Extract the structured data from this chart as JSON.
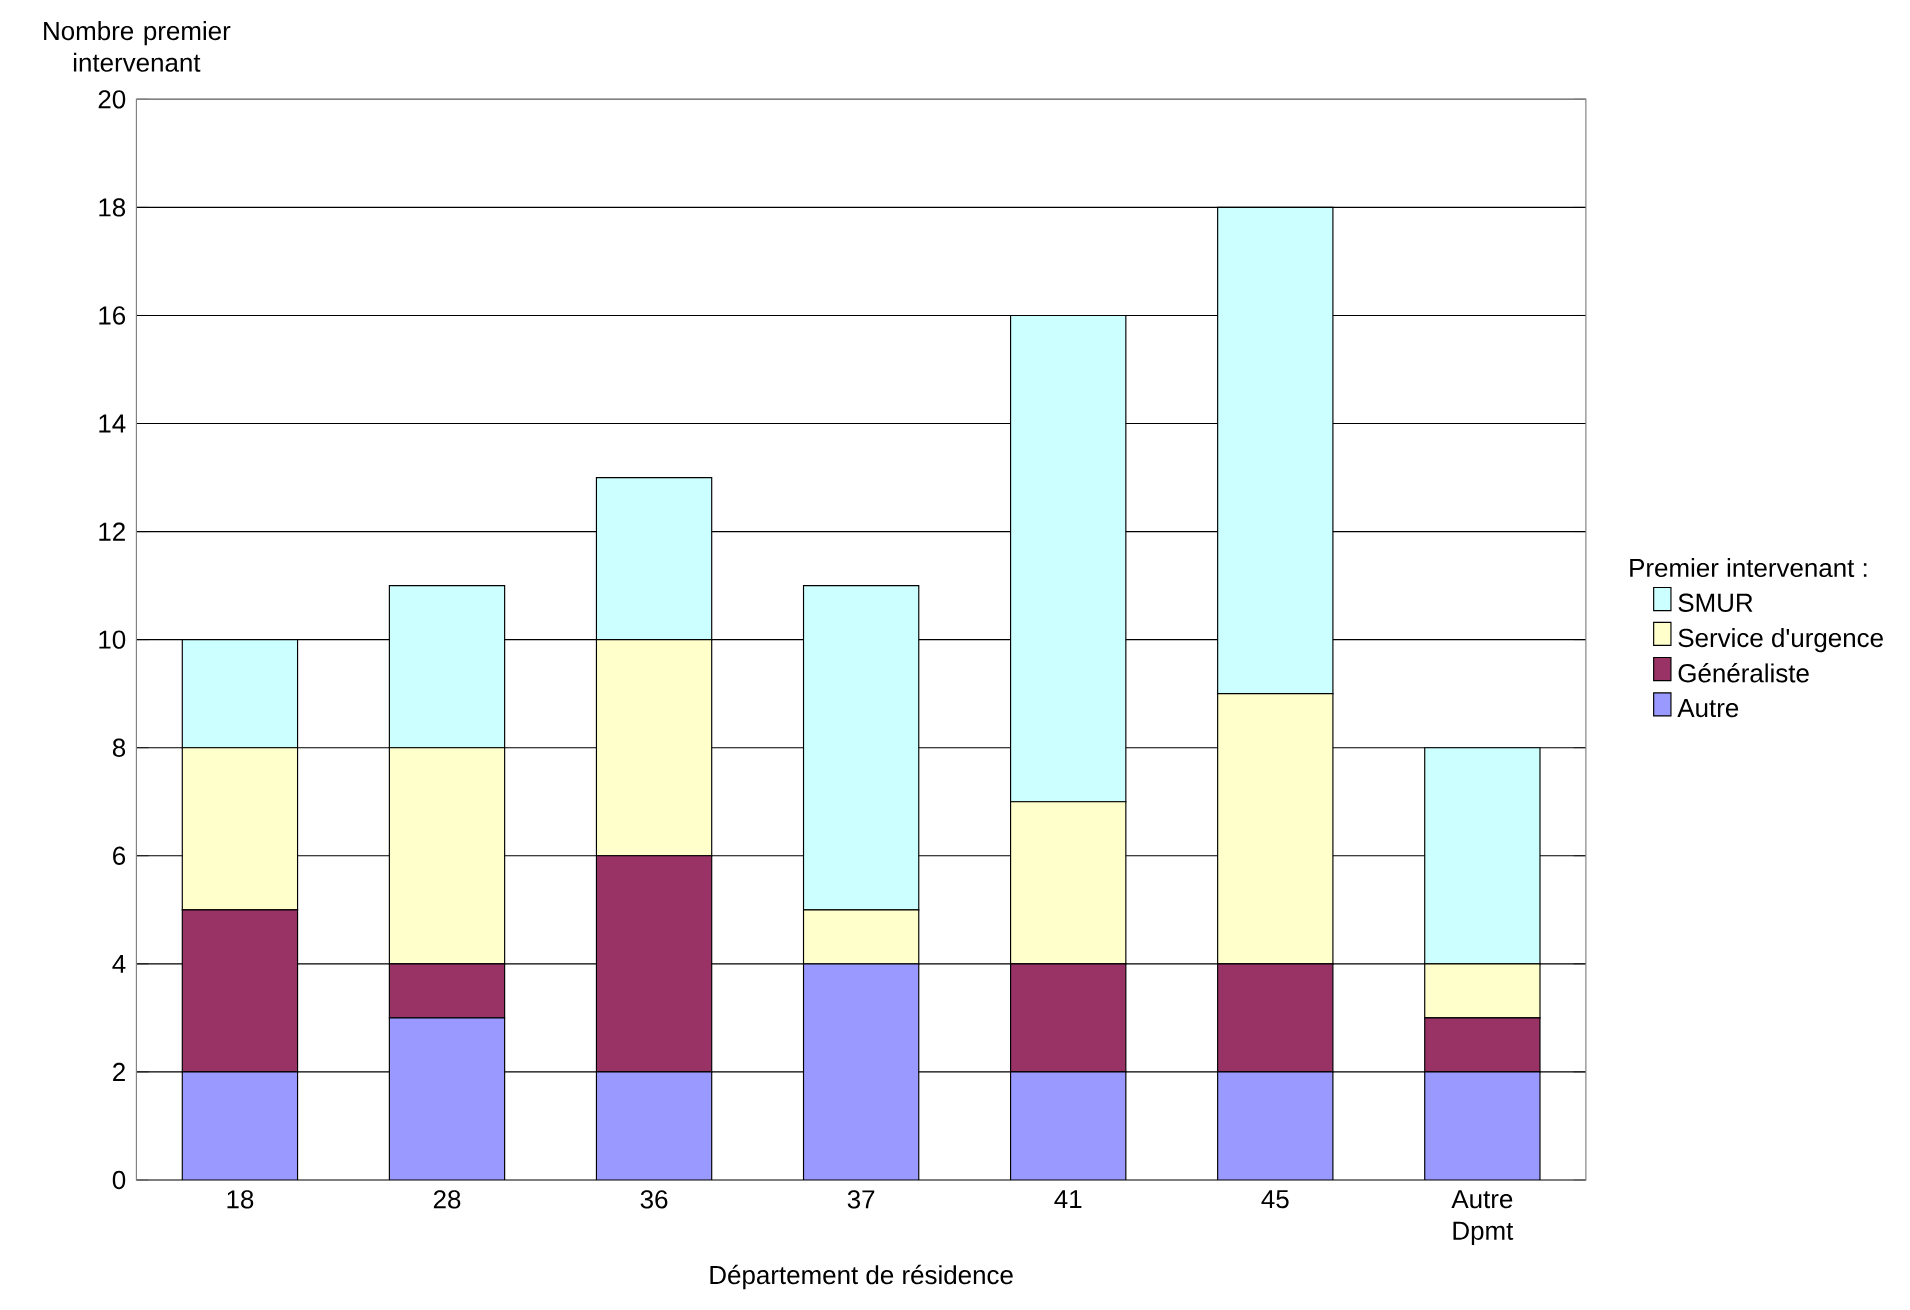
{
  "chart_data": {
    "type": "bar",
    "stacked": true,
    "xlabel": "Département de résidence",
    "ylabel": "Nombre premier intervenant",
    "legend_title": "Premier intervenant :",
    "categories": [
      "18",
      "28",
      "36",
      "37",
      "41",
      "45",
      "Autre Dpmt"
    ],
    "series": [
      {
        "name": "Autre",
        "color": "#9999ff",
        "values": [
          2,
          3,
          2,
          4,
          2,
          2,
          2
        ]
      },
      {
        "name": "Généraliste",
        "color": "#993366",
        "values": [
          3,
          1,
          4,
          0,
          2,
          2,
          1
        ]
      },
      {
        "name": "Service d'urgence",
        "color": "#ffffcc",
        "values": [
          3,
          4,
          4,
          1,
          3,
          5,
          1
        ]
      },
      {
        "name": "SMUR",
        "color": "#ccffff",
        "values": [
          2,
          3,
          3,
          6,
          9,
          9,
          4
        ]
      }
    ],
    "ylim": [
      0,
      20
    ],
    "yticks": [
      0,
      2,
      4,
      6,
      8,
      10,
      12,
      14,
      16,
      18,
      20
    ],
    "grid": "y",
    "legend": "right"
  }
}
